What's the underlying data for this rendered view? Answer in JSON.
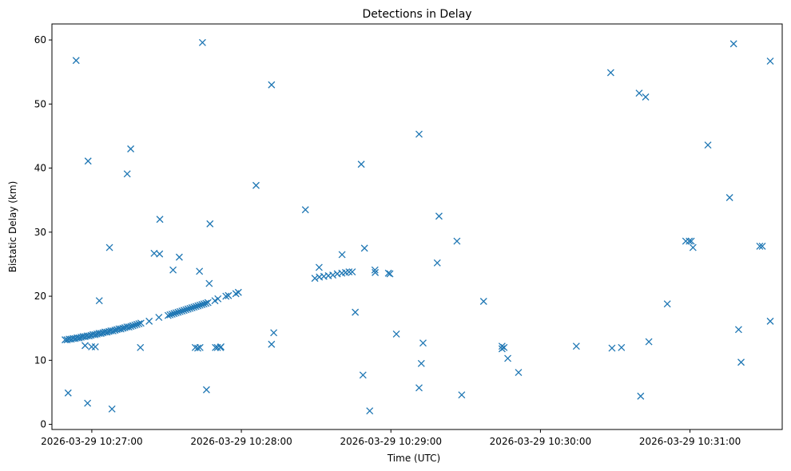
{
  "chart_data": {
    "type": "scatter",
    "title": "Detections in Delay",
    "xlabel": "Time (UTC)",
    "ylabel": "Bistatic Delay (km)",
    "marker": "x",
    "color": "#1f77b4",
    "grid": false,
    "legend": "none",
    "x_range": [
      "2026-03-29 10:26:44",
      "2026-03-29 10:31:37"
    ],
    "ylim": [
      -0.8,
      62.5
    ],
    "x_ticks": [
      "2026-03-29 10:27:00",
      "2026-03-29 10:28:00",
      "2026-03-29 10:29:00",
      "2026-03-29 10:30:00",
      "2026-03-29 10:31:00"
    ],
    "y_ticks": [
      0,
      10,
      20,
      30,
      40,
      50,
      60
    ],
    "points": [
      [
        "10:26:49.3",
        13.2
      ],
      [
        "10:26:50.1",
        13.2
      ],
      [
        "10:26:50.9",
        13.3
      ],
      [
        "10:26:51.7",
        13.3
      ],
      [
        "10:26:52.5",
        13.4
      ],
      [
        "10:26:53.3",
        13.4
      ],
      [
        "10:26:54.1",
        13.5
      ],
      [
        "10:26:54.9",
        13.5
      ],
      [
        "10:26:55.7",
        13.6
      ],
      [
        "10:26:56.5",
        13.7
      ],
      [
        "10:26:57.3",
        13.7
      ],
      [
        "10:26:58.1",
        13.8
      ],
      [
        "10:26:58.9",
        13.8
      ],
      [
        "10:26:59.7",
        13.9
      ],
      [
        "10:27:00.5",
        14.0
      ],
      [
        "10:27:01.3",
        14.0
      ],
      [
        "10:27:02.1",
        14.1
      ],
      [
        "10:27:02.9",
        14.2
      ],
      [
        "10:27:03.7",
        14.2
      ],
      [
        "10:27:04.5",
        14.3
      ],
      [
        "10:27:05.3",
        14.4
      ],
      [
        "10:27:06.1",
        14.4
      ],
      [
        "10:27:06.9",
        14.5
      ],
      [
        "10:27:07.7",
        14.6
      ],
      [
        "10:27:08.5",
        14.6
      ],
      [
        "10:27:09.3",
        14.7
      ],
      [
        "10:27:10.1",
        14.8
      ],
      [
        "10:27:10.9",
        14.9
      ],
      [
        "10:27:11.7",
        14.9
      ],
      [
        "10:27:12.5",
        15.0
      ],
      [
        "10:27:13.3",
        15.1
      ],
      [
        "10:27:14.1",
        15.2
      ],
      [
        "10:27:14.9",
        15.2
      ],
      [
        "10:27:15.7",
        15.3
      ],
      [
        "10:27:16.5",
        15.4
      ],
      [
        "10:27:17.3",
        15.5
      ],
      [
        "10:27:18.1",
        15.6
      ],
      [
        "10:27:18.9",
        15.7
      ],
      [
        "10:27:19.7",
        15.8
      ],
      [
        "10:27:23.0",
        16.1
      ],
      [
        "10:27:26.9",
        16.7
      ],
      [
        "10:27:30.6",
        17.0
      ],
      [
        "10:27:31.4",
        17.1
      ],
      [
        "10:27:32.2",
        17.2
      ],
      [
        "10:27:33.0",
        17.3
      ],
      [
        "10:27:33.8",
        17.4
      ],
      [
        "10:27:34.6",
        17.5
      ],
      [
        "10:27:35.4",
        17.6
      ],
      [
        "10:27:36.2",
        17.7
      ],
      [
        "10:27:37.0",
        17.8
      ],
      [
        "10:27:37.8",
        17.9
      ],
      [
        "10:27:38.6",
        18.0
      ],
      [
        "10:27:39.4",
        18.1
      ],
      [
        "10:27:40.2",
        18.2
      ],
      [
        "10:27:41.0",
        18.3
      ],
      [
        "10:27:41.8",
        18.4
      ],
      [
        "10:27:42.6",
        18.5
      ],
      [
        "10:27:43.4",
        18.6
      ],
      [
        "10:27:44.2",
        18.7
      ],
      [
        "10:27:45.0",
        18.8
      ],
      [
        "10:27:45.8",
        18.9
      ],
      [
        "10:27:46.6",
        19.0
      ],
      [
        "10:27:49.4",
        19.3
      ],
      [
        "10:27:50.6",
        19.6
      ],
      [
        "10:27:53.8",
        20.0
      ],
      [
        "10:27:54.8",
        20.1
      ],
      [
        "10:27:57.8",
        20.4
      ],
      [
        "10:27:58.8",
        20.6
      ],
      [
        "10:28:29.5",
        22.8
      ],
      [
        "10:28:31.3",
        23.0
      ],
      [
        "10:28:33.1",
        23.1
      ],
      [
        "10:28:34.9",
        23.2
      ],
      [
        "10:28:36.7",
        23.3
      ],
      [
        "10:28:38.5",
        23.5
      ],
      [
        "10:28:40.3",
        23.6
      ],
      [
        "10:28:41.8",
        23.7
      ],
      [
        "10:28:43.2",
        23.8
      ],
      [
        "10:28:44.5",
        23.8
      ],
      [
        "10:28:59.0",
        23.6
      ],
      [
        "10:28:59.6",
        23.5
      ],
      [
        "10:26:50.5",
        4.9
      ],
      [
        "10:26:53.7",
        56.8
      ],
      [
        "10:26:57.3",
        12.3
      ],
      [
        "10:27:01.4",
        12.1
      ],
      [
        "10:26:58.3",
        3.3
      ],
      [
        "10:26:58.5",
        41.1
      ],
      [
        "10:26:59.9",
        12.1
      ],
      [
        "10:27:03.0",
        19.3
      ],
      [
        "10:27:07.1",
        27.6
      ],
      [
        "10:27:08.1",
        2.4
      ],
      [
        "10:27:14.2",
        39.1
      ],
      [
        "10:27:15.6",
        43.0
      ],
      [
        "10:27:19.5",
        12.0
      ],
      [
        "10:27:25.0",
        26.7
      ],
      [
        "10:27:27.2",
        26.6
      ],
      [
        "10:27:27.3",
        32.0
      ],
      [
        "10:27:32.6",
        24.1
      ],
      [
        "10:27:35.1",
        26.1
      ],
      [
        "10:27:41.5",
        12.0
      ],
      [
        "10:27:42.5",
        11.9
      ],
      [
        "10:27:43.4",
        12.0
      ],
      [
        "10:27:43.2",
        23.9
      ],
      [
        "10:27:44.4",
        59.6
      ],
      [
        "10:27:46.0",
        5.4
      ],
      [
        "10:27:47.1",
        22.0
      ],
      [
        "10:27:47.4",
        31.3
      ],
      [
        "10:27:49.6",
        12.0
      ],
      [
        "10:27:50.4",
        12.0
      ],
      [
        "10:27:51.6",
        12.0
      ],
      [
        "10:27:51.8",
        12.1
      ],
      [
        "10:28:05.9",
        37.3
      ],
      [
        "10:28:12.1",
        12.5
      ],
      [
        "10:28:12.1",
        53.0
      ],
      [
        "10:28:13.0",
        14.3
      ],
      [
        "10:28:25.7",
        33.5
      ],
      [
        "10:28:31.2",
        24.5
      ],
      [
        "10:28:40.4",
        26.5
      ],
      [
        "10:28:45.7",
        17.5
      ],
      [
        "10:28:48.1",
        40.6
      ],
      [
        "10:28:48.8",
        7.7
      ],
      [
        "10:28:49.4",
        27.5
      ],
      [
        "10:28:51.5",
        2.1
      ],
      [
        "10:28:53.6",
        24.1
      ],
      [
        "10:28:53.7",
        23.7
      ],
      [
        "10:29:02.2",
        14.1
      ],
      [
        "10:29:11.3",
        45.3
      ],
      [
        "10:29:11.3",
        5.7
      ],
      [
        "10:29:12.2",
        9.5
      ],
      [
        "10:29:12.9",
        12.7
      ],
      [
        "10:29:18.6",
        25.2
      ],
      [
        "10:29:19.3",
        32.5
      ],
      [
        "10:29:26.5",
        28.6
      ],
      [
        "10:29:28.4",
        4.6
      ],
      [
        "10:29:37.2",
        19.2
      ],
      [
        "10:29:44.6",
        12.2
      ],
      [
        "10:29:44.6",
        11.8
      ],
      [
        "10:29:45.4",
        12.0
      ],
      [
        "10:29:46.9",
        10.3
      ],
      [
        "10:29:51.2",
        8.1
      ],
      [
        "10:30:14.4",
        12.2
      ],
      [
        "10:30:28.2",
        54.9
      ],
      [
        "10:30:28.7",
        11.9
      ],
      [
        "10:30:32.5",
        12.0
      ],
      [
        "10:30:39.6",
        51.7
      ],
      [
        "10:30:40.2",
        4.4
      ],
      [
        "10:30:42.2",
        51.1
      ],
      [
        "10:30:43.5",
        12.9
      ],
      [
        "10:30:50.9",
        18.8
      ],
      [
        "10:30:58.3",
        28.6
      ],
      [
        "10:30:59.7",
        28.6
      ],
      [
        "10:31:00.5",
        28.6
      ],
      [
        "10:31:01.2",
        27.6
      ],
      [
        "10:31:07.2",
        43.6
      ],
      [
        "10:31:15.9",
        35.4
      ],
      [
        "10:31:17.5",
        59.4
      ],
      [
        "10:31:19.5",
        14.8
      ],
      [
        "10:31:20.5",
        9.7
      ],
      [
        "10:31:28.0",
        27.8
      ],
      [
        "10:31:29.0",
        27.8
      ],
      [
        "10:31:32.2",
        56.7
      ],
      [
        "10:31:32.2",
        16.1
      ]
    ]
  }
}
